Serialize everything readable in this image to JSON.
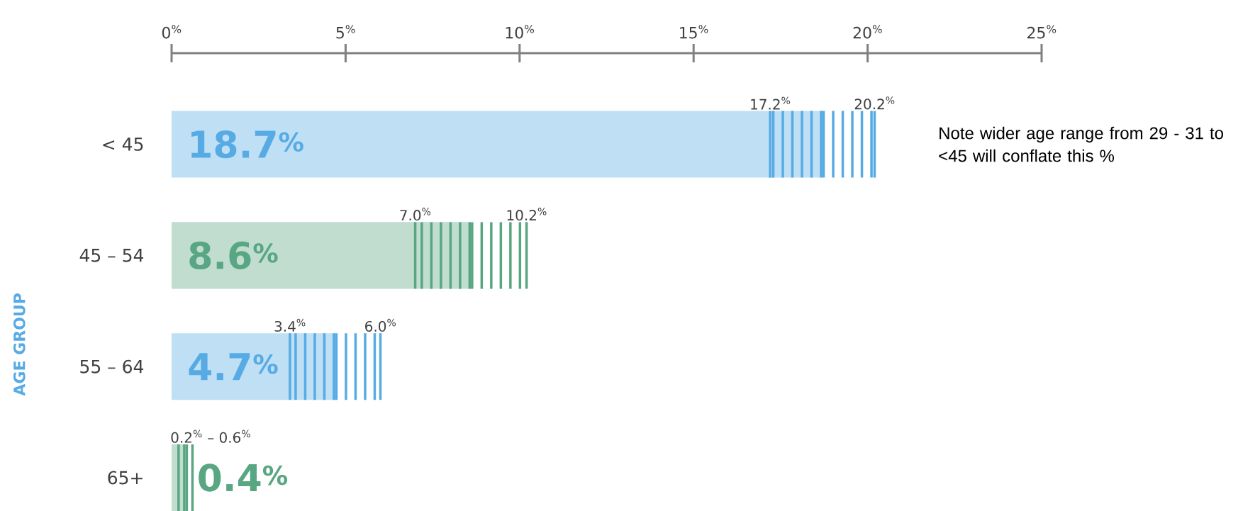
{
  "chart_data": {
    "type": "bar",
    "orientation": "horizontal",
    "ylabel": "AGE GROUP",
    "categories": [
      "< 45",
      "45 – 54",
      "55 – 64",
      "65+"
    ],
    "values": [
      18.7,
      8.6,
      4.7,
      0.4
    ],
    "colors": [
      "#bfdff5",
      "#c0ddd0",
      "#bfdff5",
      "#c0ddd0"
    ],
    "errors": [
      [
        17.2,
        20.2
      ],
      [
        7.0,
        10.2
      ],
      [
        3.4,
        6.0
      ],
      [
        0.2,
        0.6
      ]
    ],
    "value_labels": [
      "18.7$^{%}$",
      "8.6$^{%}$",
      "4.7$^{%}$",
      "0.4$^{%}$"
    ],
    "xlim": [
      0,
      25
    ],
    "xticks": [
      {
        "value": 0,
        "label": "0$^{%}$"
      },
      {
        "value": 5,
        "label": "5$^{%}$"
      },
      {
        "value": 10,
        "label": "10$^{%}$"
      },
      {
        "value": 15,
        "label": "15$^{%}$"
      },
      {
        "value": 20,
        "label": "20$^{%}$"
      },
      {
        "value": 25,
        "label": "25$^{%}$"
      }
    ],
    "annotations": [
      {
        "text": "17.2$^{%}$",
        "x": 17.2,
        "y": "< 45"
      },
      {
        "text": "20.2$^{%}$",
        "x": 20.2,
        "y": "< 45"
      },
      {
        "text": "7.0$^{%}$",
        "x": 7.0,
        "y": "45 – 54"
      },
      {
        "text": "10.2$^{%}$",
        "x": 10.2,
        "y": "45 – 54"
      },
      {
        "text": "3.4$^{%}$",
        "x": 3.4,
        "y": "55 – 64"
      },
      {
        "text": "6.0$^{%}$",
        "x": 6.0,
        "y": "55 – 64"
      },
      {
        "text": "0.2$^{%}$ – 0.6$^{%}$",
        "x": 0.2,
        "y": "65+"
      },
      "Note wider age range from 29 - 31 to <45 will conflate this %"
    ]
  }
}
